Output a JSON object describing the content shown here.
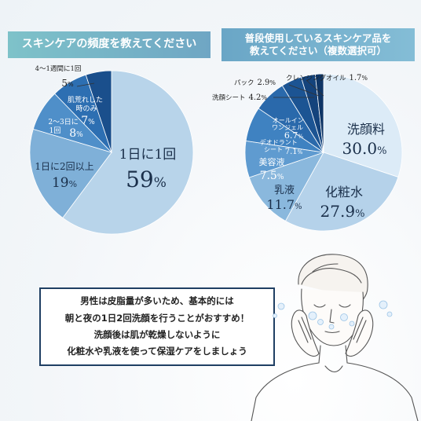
{
  "banners": {
    "left": "スキンケアの頻度を教えてください",
    "right_line1": "普段使用しているスキンケア品を",
    "right_line2": "教えてください（複数選択可）"
  },
  "chart_data": [
    {
      "type": "pie",
      "title": "スキンケアの頻度を教えてください",
      "slices": [
        {
          "label": "1日に1回",
          "value": 59,
          "display": "59%",
          "color": "#b8d4ea"
        },
        {
          "label": "1日に2回以上",
          "value": 19,
          "display": "19%",
          "color": "#7fb0d8"
        },
        {
          "label": "2〜3日に1回",
          "value": 8,
          "display": "8%",
          "color": "#4f8fc9"
        },
        {
          "label": "肌荒れした時のみ",
          "value": 7,
          "display": "7%",
          "color": "#2d6fb2"
        },
        {
          "label": "4〜1週間に1回",
          "value": 5,
          "display": "5%",
          "color": "#1a4f8c"
        }
      ]
    },
    {
      "type": "pie",
      "title": "普段使用しているスキンケア品を教えてください（複数選択可）",
      "slices": [
        {
          "label": "洗顔料",
          "value": 30.0,
          "display": "30.0%",
          "color": "#dcebf7"
        },
        {
          "label": "化粧水",
          "value": 27.9,
          "display": "27.9%",
          "color": "#b5d2ea"
        },
        {
          "label": "乳液",
          "value": 11.7,
          "display": "11.7%",
          "color": "#8ab8dd"
        },
        {
          "label": "美容液",
          "value": 7.5,
          "display": "7.5%",
          "color": "#5f9bd0"
        },
        {
          "label": "デオドラントシート",
          "value": 7.1,
          "display": "7.1%",
          "color": "#3f82c1"
        },
        {
          "label": "オールインワンジェル",
          "value": 6.7,
          "display": "6.7%",
          "color": "#2a69ab"
        },
        {
          "label": "洗顔シート",
          "value": 4.2,
          "display": "4.2%",
          "color": "#1c5493"
        },
        {
          "label": "パック",
          "value": 2.9,
          "display": "2.9%",
          "color": "#14437c"
        },
        {
          "label": "クレンジングオイル",
          "value": 1.7,
          "display": "1.7%",
          "color": "#0e3566"
        }
      ]
    }
  ],
  "left_labels": {
    "daily_once": {
      "line1": "1日に1回",
      "pct": "59",
      "unit": "%"
    },
    "daily_twice": {
      "line1": "1日に2回以上",
      "pct": "19",
      "unit": "%"
    },
    "every_2_3": {
      "line1": "2〜3日に",
      "line2": "1回",
      "pct": "8",
      "unit": "%"
    },
    "rough_skin": {
      "line1": "肌荒れした",
      "line2": "時のみ",
      "pct": "7",
      "unit": "%"
    },
    "weekly": {
      "line1": "4〜1週間に1回",
      "pct": "5",
      "unit": "%"
    }
  },
  "right_labels": {
    "face_wash": {
      "line1": "洗顔料",
      "pct": "30.0",
      "unit": "%"
    },
    "toner": {
      "line1": "化粧水",
      "pct": "27.9",
      "unit": "%"
    },
    "milk": {
      "line1": "乳液",
      "pct": "11.7",
      "unit": "%"
    },
    "serum": {
      "line1": "美容液",
      "pct": "7.5",
      "unit": "%"
    },
    "deodorant": {
      "line1": "デオドラント",
      "line2": "シート",
      "pct": "7.1",
      "unit": "%"
    },
    "all_in_one": {
      "line1": "オールイン",
      "line2": "ワンジェル",
      "pct": "6.7",
      "unit": "%"
    },
    "face_sheet": {
      "line1": "洗顔シート",
      "pct": "4.2",
      "unit": "%"
    },
    "pack": {
      "line1": "パック",
      "pct": "2.9",
      "unit": "%"
    },
    "cleansing_oil": {
      "line1": "クレンジングオイル",
      "pct": "1.7",
      "unit": "%"
    }
  },
  "message": {
    "line1": "男性は皮脂量が多いため、基本的には",
    "line2": "朝と夜の1日2回洗顔を行うことがおすすめ！",
    "line3": "洗顔後は肌が乾燥しないように",
    "line4": "化粧水や乳液を使って保湿ケアをしましょう"
  },
  "icons": {
    "illustration": "man-washing-face-illustration"
  }
}
